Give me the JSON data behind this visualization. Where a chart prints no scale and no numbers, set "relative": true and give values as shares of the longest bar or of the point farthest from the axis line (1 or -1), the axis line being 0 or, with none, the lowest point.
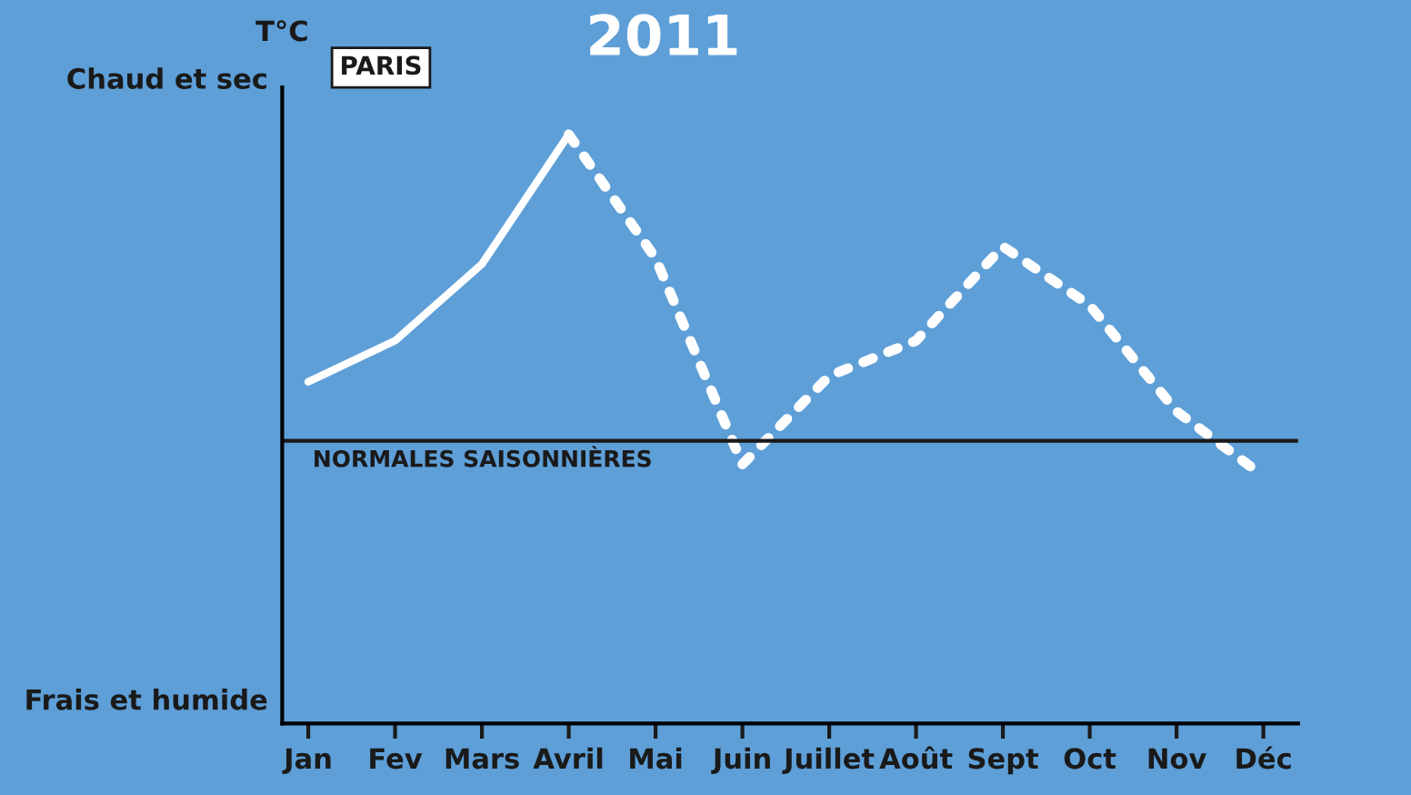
{
  "chart_data": {
    "type": "line",
    "relative": true,
    "ylabel": "T°C",
    "categories": [
      "Jan",
      "Fev",
      "Mars",
      "Avril",
      "Mai",
      "Juin",
      "Juillet",
      "Août",
      "Sept",
      "Oct",
      "Nov",
      "Déc"
    ],
    "series": [
      {
        "color": "#ffffff",
        "line_style": "solid",
        "values": [
          0.58,
          0.65,
          0.78,
          1,
          null,
          null,
          null,
          null,
          null,
          null,
          null,
          null
        ]
      },
      {
        "color": "#ffffff",
        "line_style": "dotted",
        "values": [
          null,
          null,
          null,
          1,
          0.79,
          0.44,
          0.59,
          0.65,
          0.81,
          0.71,
          0.53,
          0.42
        ]
      }
    ],
    "ref_lines": [
      {
        "axis": "y",
        "value": 0.48,
        "label": "NORMALES SAISONNIÈRES",
        "color": "#1a1a1a",
        "line_style": "solid"
      }
    ],
    "annotations": [
      "Chaud et sec",
      "Frais et humide",
      "PARIS",
      "2011"
    ],
    "tick_labels": "x",
    "grid": false,
    "legend": false
  }
}
